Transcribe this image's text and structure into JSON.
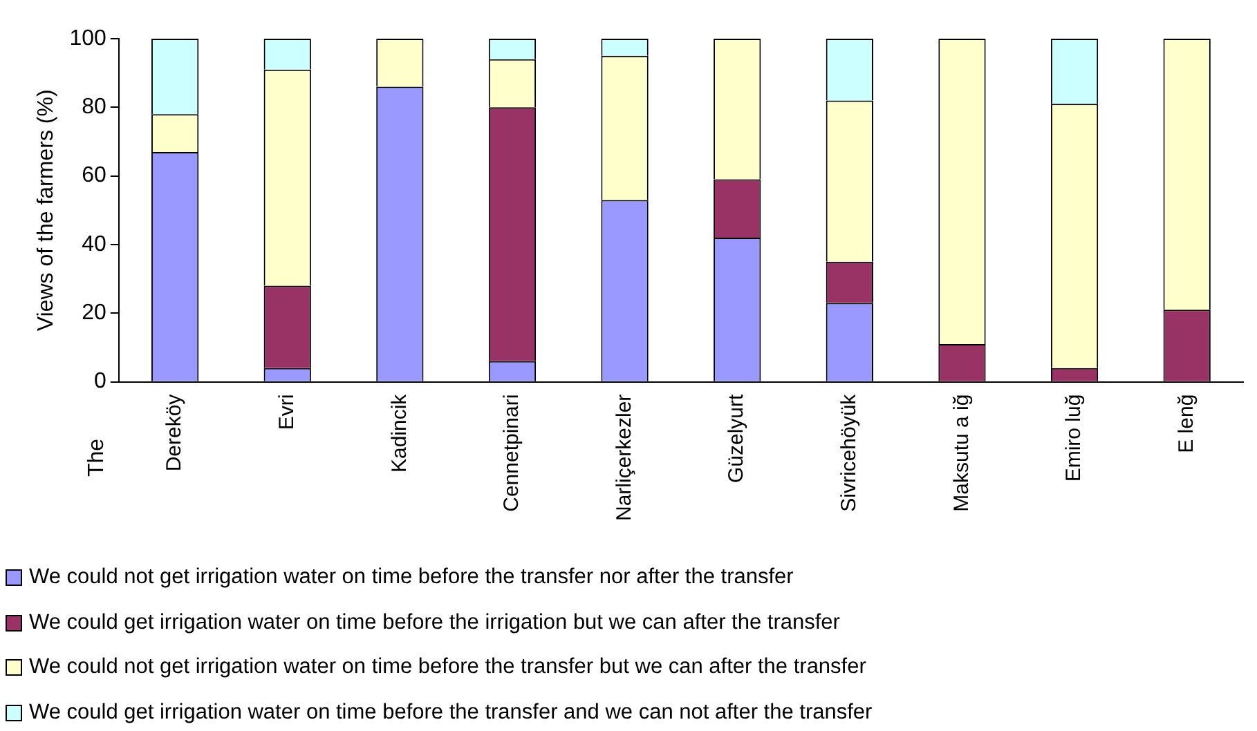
{
  "chart_data": {
    "type": "bar",
    "stacked": true,
    "ylabel": "Views of the farmers (%)",
    "annotations": [
      "The"
    ],
    "categories": [
      "Dereköy",
      "Evri",
      "Kadincik",
      "Cennetpinari",
      "Narliçerkezler",
      "Güzelyurt",
      "Sivricehöyük",
      "Maksutu a iğ",
      "Emiro luğ",
      "E lenğ"
    ],
    "series": [
      {
        "name": "We could not get irrigation water on time before the transfer nor after the transfer",
        "color": "#9999ff",
        "values": [
          67,
          4,
          86,
          6,
          53,
          42,
          23,
          0,
          0,
          0
        ]
      },
      {
        "name": "We could  get irrigation water on time before the irrigation but we can after the transfer",
        "color": "#993366",
        "values": [
          0,
          24,
          0,
          74,
          0,
          17,
          12,
          11,
          4,
          21
        ]
      },
      {
        "name": "We could not get irrigation water on time before the transfer but we can after the transfer",
        "color": "#ffffcc",
        "values": [
          11,
          63,
          14,
          14,
          42,
          41,
          47,
          89,
          77,
          79
        ]
      },
      {
        "name": "We could get irrigation water on time before the transfer and we can not after the transfer",
        "color": "#ccffff",
        "values": [
          22,
          9,
          0,
          6,
          5,
          0,
          18,
          0,
          19,
          0
        ]
      }
    ],
    "ylim": [
      0,
      100
    ],
    "yticks": [
      0,
      20,
      40,
      60,
      80,
      100
    ],
    "grid": false,
    "legend": "bottom"
  }
}
